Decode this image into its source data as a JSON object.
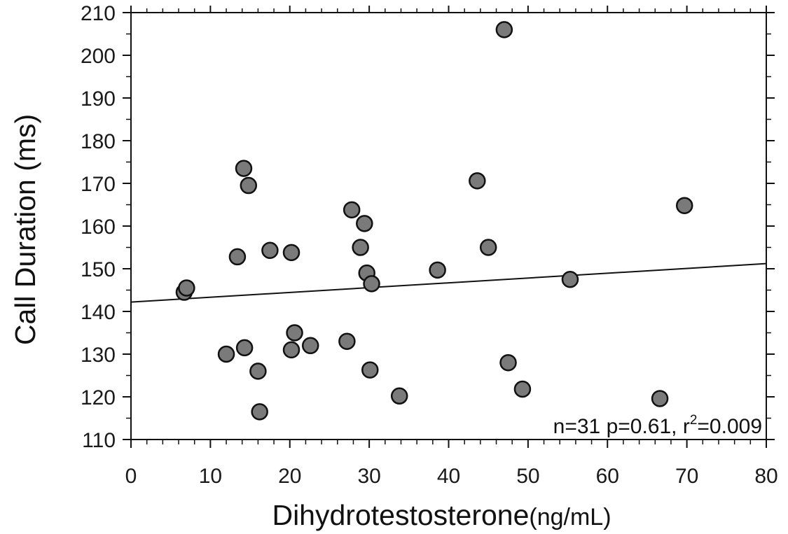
{
  "chart_data": {
    "type": "scatter",
    "xlabel": "Dihydrotestosterone",
    "xlabel_unit": "(ng/mL)",
    "ylabel": "Call Duration (ms)",
    "xlim": [
      0,
      80
    ],
    "ylim": [
      110,
      210
    ],
    "xticks": [
      0,
      10,
      20,
      30,
      40,
      50,
      60,
      70,
      80
    ],
    "yticks": [
      110,
      120,
      130,
      140,
      150,
      160,
      170,
      180,
      190,
      200,
      210
    ],
    "grid": false,
    "colors": {
      "point_fill": "#7a7a7a",
      "point_stroke": "#111111",
      "line": "#111111",
      "axis": "#111111"
    },
    "annotation": {
      "prefix": "n=31 p=0.61, r",
      "sup": "2",
      "suffix": "=0.009"
    },
    "points": [
      {
        "x": 6.7,
        "y": 144.5
      },
      {
        "x": 7.0,
        "y": 145.5
      },
      {
        "x": 12.0,
        "y": 130.0
      },
      {
        "x": 13.4,
        "y": 152.8
      },
      {
        "x": 14.2,
        "y": 173.5
      },
      {
        "x": 14.3,
        "y": 131.5
      },
      {
        "x": 14.8,
        "y": 169.5
      },
      {
        "x": 16.0,
        "y": 126.0
      },
      {
        "x": 16.2,
        "y": 116.5
      },
      {
        "x": 17.5,
        "y": 154.3
      },
      {
        "x": 20.2,
        "y": 153.8
      },
      {
        "x": 20.2,
        "y": 131.0
      },
      {
        "x": 20.6,
        "y": 135.0
      },
      {
        "x": 22.6,
        "y": 132.0
      },
      {
        "x": 27.2,
        "y": 133.0
      },
      {
        "x": 27.8,
        "y": 163.8
      },
      {
        "x": 28.9,
        "y": 155.0
      },
      {
        "x": 29.4,
        "y": 160.6
      },
      {
        "x": 29.7,
        "y": 149.0
      },
      {
        "x": 30.1,
        "y": 126.3
      },
      {
        "x": 30.3,
        "y": 146.5
      },
      {
        "x": 33.8,
        "y": 120.2
      },
      {
        "x": 38.6,
        "y": 149.7
      },
      {
        "x": 43.6,
        "y": 170.6
      },
      {
        "x": 45.0,
        "y": 155.0
      },
      {
        "x": 47.0,
        "y": 206.0
      },
      {
        "x": 47.5,
        "y": 128.0
      },
      {
        "x": 49.3,
        "y": 121.8
      },
      {
        "x": 55.3,
        "y": 147.5
      },
      {
        "x": 66.6,
        "y": 119.6
      },
      {
        "x": 69.7,
        "y": 164.8
      }
    ],
    "trendline": {
      "x1": 0,
      "y1": 142.2,
      "x2": 80,
      "y2": 151.2
    }
  }
}
